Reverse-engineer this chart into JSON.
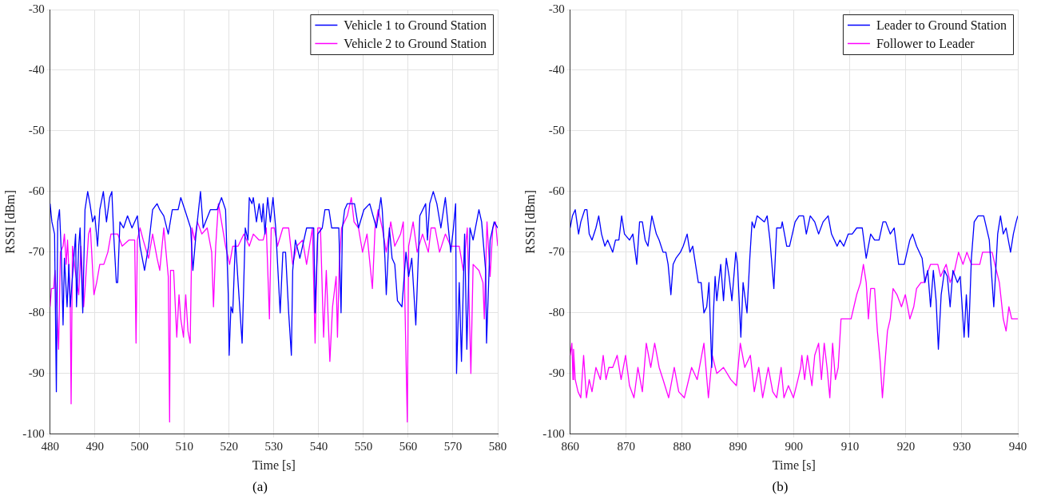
{
  "chart_data": [
    {
      "type": "line",
      "xlabel": "Time [s]",
      "ylabel": "RSSI [dBm]",
      "xlim": [
        480,
        580
      ],
      "xticks": [
        480,
        490,
        500,
        510,
        520,
        530,
        540,
        550,
        560,
        570,
        580
      ],
      "ylim": [
        -100,
        -30
      ],
      "yticks": [
        -100,
        -90,
        -80,
        -70,
        -60,
        -50,
        -40,
        -30
      ],
      "grid": true,
      "legend": "top right",
      "marker": "none",
      "line_style": "solid",
      "annotations": [
        "(a)"
      ],
      "series": [
        {
          "name": "Vehicle 1 to Ground Station",
          "color": "#0000ff",
          "x": [
            480,
            480.4,
            481,
            481.4,
            481.7,
            482.1,
            482.5,
            482.9,
            483.2,
            483.8,
            484.2,
            484.5,
            485.1,
            485.7,
            485.9,
            486.4,
            486.7,
            487.3,
            487.8,
            488.4,
            488.9,
            489.5,
            490,
            490.6,
            491.1,
            491.9,
            492.6,
            493.3,
            493.8,
            494.2,
            494.8,
            495.1,
            495.6,
            496.4,
            497.3,
            498.3,
            499.5,
            500.1,
            501.1,
            502,
            502.9,
            503.9,
            504.5,
            505.4,
            506.4,
            507.3,
            508.6,
            509.2,
            510.1,
            511.4,
            511.9,
            512.6,
            513.6,
            514.2,
            515.8,
            517.3,
            518.3,
            519.2,
            519.8,
            520,
            520.4,
            520.8,
            521.4,
            522,
            522.9,
            523.6,
            524.2,
            524.5,
            525.1,
            525.4,
            526.1,
            526.7,
            527.3,
            527.6,
            528,
            528.6,
            529.2,
            529.8,
            530.4,
            531.4,
            532,
            532.6,
            533.3,
            533.9,
            534.2,
            534.8,
            535.8,
            537.3,
            538.9,
            539.2,
            539.8,
            540.8,
            541.4,
            542.3,
            542.9,
            544.5,
            545,
            545.3,
            545.8,
            546.4,
            548,
            548.9,
            550.1,
            551.4,
            552.9,
            553.9,
            554.2,
            554.8,
            555.1,
            555.8,
            556.4,
            557,
            557.6,
            558.6,
            559.5,
            560.1,
            560.8,
            561.7,
            562.6,
            563.9,
            564.3,
            564.8,
            565.6,
            566.4,
            567.3,
            568.3,
            569.5,
            570.1,
            570.6,
            570.8,
            571.4,
            571.9,
            572.6,
            573.1,
            573.8,
            574.5,
            575.8,
            576.4,
            577.3,
            577.5,
            578.3,
            579.2,
            580
          ],
          "values": [
            -62,
            -65,
            -67,
            -93,
            -65,
            -63,
            -70,
            -82,
            -71,
            -79,
            -72,
            -79,
            -73,
            -67,
            -79,
            -69,
            -66,
            -80,
            -63,
            -60,
            -62,
            -65,
            -64,
            -69,
            -63,
            -60,
            -65,
            -61,
            -60,
            -67,
            -75,
            -75,
            -65,
            -66,
            -64,
            -66,
            -64,
            -69,
            -73,
            -69,
            -63,
            -62,
            -63,
            -64,
            -67,
            -63,
            -63,
            -61,
            -63,
            -66,
            -73,
            -67,
            -60,
            -66,
            -63,
            -63,
            -61,
            -63,
            -77,
            -87,
            -79,
            -80,
            -68,
            -75,
            -85,
            -66,
            -68,
            -61,
            -62,
            -61,
            -65,
            -62,
            -65,
            -62,
            -67,
            -61,
            -65,
            -61,
            -66,
            -80,
            -70,
            -70,
            -80,
            -87,
            -73,
            -68,
            -71,
            -66,
            -66,
            -80,
            -67,
            -66,
            -63,
            -63,
            -66,
            -66,
            -80,
            -66,
            -63,
            -62,
            -62,
            -66,
            -63,
            -62,
            -66,
            -61,
            -63,
            -71,
            -77,
            -66,
            -71,
            -72,
            -78,
            -79,
            -70,
            -74,
            -71,
            -82,
            -64,
            -62,
            -68,
            -62,
            -60,
            -62,
            -66,
            -61,
            -70,
            -66,
            -62,
            -90,
            -75,
            -88,
            -67,
            -86,
            -66,
            -68,
            -63,
            -65,
            -73,
            -85,
            -68,
            -65,
            -66
          ]
        },
        {
          "name": "Vehicle 2 to Ground Station",
          "color": "#ff00ff",
          "x": [
            480,
            480.3,
            480.8,
            481.1,
            481.5,
            481.9,
            482.3,
            482.9,
            483.2,
            483.6,
            483.9,
            484.5,
            484.7,
            485,
            485.6,
            486.4,
            486.9,
            487.5,
            487.9,
            488.6,
            489,
            489.8,
            490.4,
            491.1,
            492,
            492.9,
            493.6,
            495.1,
            496.1,
            497.6,
            498.9,
            499.2,
            499.5,
            500.1,
            500.8,
            502,
            502.9,
            503.9,
            504.5,
            505.4,
            506.4,
            506.7,
            506.9,
            507.6,
            508.3,
            508.8,
            509.2,
            509.8,
            510.3,
            510.8,
            511.3,
            511.7,
            512.3,
            512.9,
            513.9,
            515.1,
            516.1,
            516.5,
            517,
            517.6,
            518.3,
            519.2,
            520.1,
            520.8,
            522,
            523.3,
            524.5,
            525.4,
            526.7,
            527.6,
            528.3,
            529,
            529.4,
            530.1,
            530.8,
            532,
            533.3,
            534.2,
            535.1,
            536.4,
            537.3,
            538.6,
            539.2,
            539.8,
            540.4,
            541.1,
            541.7,
            542.5,
            543.1,
            543.9,
            544.2,
            544.6,
            545.1,
            546.4,
            547.3,
            547.9,
            548.9,
            549.8,
            550.8,
            552,
            552.6,
            553.3,
            554.2,
            555.1,
            556.1,
            557,
            558.3,
            558.9,
            559.8,
            560.1,
            561.1,
            562,
            563.2,
            564.5,
            565.1,
            566,
            567,
            568.3,
            569.5,
            570.4,
            571.4,
            572.3,
            573.2,
            574,
            574.5,
            575.8,
            576.7,
            577,
            577.6,
            578.3,
            578.9,
            579.5,
            580
          ],
          "values": [
            -79,
            -76,
            -76,
            -73,
            -79,
            -86,
            -70,
            -69,
            -67,
            -72,
            -68,
            -78,
            -95,
            -69,
            -73,
            -77,
            -69,
            -79,
            -75,
            -67,
            -66,
            -77,
            -75,
            -72,
            -72,
            -70,
            -67,
            -67,
            -69,
            -68,
            -68,
            -85,
            -68,
            -66,
            -68,
            -71,
            -67,
            -71,
            -73,
            -66,
            -74,
            -98,
            -73,
            -73,
            -84,
            -77,
            -81,
            -84,
            -77,
            -83,
            -85,
            -66,
            -68,
            -65,
            -67,
            -66,
            -70,
            -79,
            -69,
            -62,
            -65,
            -69,
            -72,
            -69,
            -69,
            -67,
            -69,
            -67,
            -68,
            -68,
            -66,
            -81,
            -66,
            -66,
            -69,
            -66,
            -66,
            -72,
            -69,
            -68,
            -72,
            -66,
            -85,
            -66,
            -66,
            -84,
            -73,
            -88,
            -79,
            -74,
            -84,
            -72,
            -66,
            -64,
            -61,
            -65,
            -66,
            -70,
            -67,
            -76,
            -66,
            -63,
            -66,
            -70,
            -65,
            -69,
            -67,
            -65,
            -98,
            -69,
            -65,
            -70,
            -67,
            -70,
            -66,
            -66,
            -70,
            -67,
            -69,
            -69,
            -69,
            -73,
            -66,
            -90,
            -72,
            -73,
            -75,
            -81,
            -65,
            -74,
            -66,
            -65,
            -69
          ]
        }
      ]
    },
    {
      "type": "line",
      "xlabel": "Time [s]",
      "ylabel": "RSSI [dBm]",
      "xlim": [
        860,
        940
      ],
      "xticks": [
        860,
        870,
        880,
        890,
        900,
        910,
        920,
        930,
        940
      ],
      "ylim": [
        -100,
        -30
      ],
      "yticks": [
        -100,
        -90,
        -80,
        -70,
        -60,
        -50,
        -40,
        -30
      ],
      "grid": true,
      "legend": "top right",
      "marker": "none",
      "line_style": "solid",
      "annotations": [
        "(b)"
      ],
      "series": [
        {
          "name": "Leader to Ground Station",
          "color": "#0000ff",
          "x": [
            860,
            860.4,
            860.9,
            861.2,
            861.5,
            861.9,
            862.6,
            863,
            863.4,
            863.9,
            864.6,
            865.1,
            865.6,
            866.2,
            866.7,
            867.6,
            868.1,
            868.7,
            869.2,
            869.7,
            870.6,
            871.2,
            871.9,
            872.4,
            872.9,
            873.4,
            873.9,
            874.6,
            875.4,
            875.9,
            876.6,
            877.1,
            877.5,
            878,
            878.4,
            878.9,
            879.7,
            880.2,
            880.9,
            881.4,
            881.9,
            882.4,
            882.9,
            883.4,
            883.9,
            884.4,
            884.8,
            885.3,
            885.6,
            885.9,
            886.2,
            886.9,
            887.4,
            887.9,
            888.4,
            888.9,
            889.6,
            889.9,
            890.5,
            890.9,
            891.6,
            892.1,
            892.5,
            892.9,
            893.4,
            894.7,
            895.2,
            895.7,
            896.4,
            896.9,
            897.7,
            897.9,
            898.7,
            899.2,
            899.7,
            900.2,
            900.9,
            901.7,
            902.2,
            902.9,
            903.7,
            904.4,
            905.2,
            906.1,
            906.7,
            907.7,
            908.2,
            908.9,
            909.7,
            910.4,
            911.2,
            912.2,
            912.9,
            913.7,
            914.4,
            915.2,
            915.9,
            916.4,
            917.2,
            917.9,
            918.7,
            919.7,
            920.7,
            921.2,
            921.9,
            922.9,
            923.4,
            923.9,
            924.4,
            924.9,
            925.4,
            925.8,
            926.3,
            926.9,
            927.4,
            927.9,
            928.4,
            929.2,
            929.7,
            930.4,
            930.8,
            931.2,
            931.7,
            932.2,
            932.9,
            933.9,
            934.9,
            935.7,
            936.4,
            936.9,
            937.4,
            937.9,
            938.7,
            939.2,
            939.7,
            940
          ],
          "values": [
            -66,
            -64,
            -63,
            -65,
            -67,
            -65,
            -63,
            -63,
            -67,
            -68,
            -66,
            -64,
            -67,
            -69,
            -68,
            -70,
            -68,
            -68,
            -64,
            -67,
            -68,
            -67,
            -72,
            -65,
            -65,
            -68,
            -69,
            -64,
            -67,
            -68,
            -70,
            -70,
            -72,
            -77,
            -72,
            -71,
            -70,
            -69,
            -67,
            -70,
            -69,
            -72,
            -75,
            -75,
            -80,
            -79,
            -75,
            -89,
            -80,
            -74,
            -78,
            -72,
            -78,
            -71,
            -74,
            -78,
            -70,
            -72,
            -84,
            -75,
            -80,
            -71,
            -65,
            -66,
            -64,
            -65,
            -64,
            -68,
            -76,
            -66,
            -66,
            -65,
            -69,
            -69,
            -67,
            -65,
            -64,
            -64,
            -67,
            -64,
            -65,
            -67,
            -65,
            -64,
            -67,
            -69,
            -68,
            -69,
            -67,
            -67,
            -66,
            -66,
            -71,
            -67,
            -68,
            -68,
            -65,
            -65,
            -67,
            -66,
            -72,
            -72,
            -68,
            -67,
            -69,
            -71,
            -75,
            -73,
            -79,
            -73,
            -78,
            -86,
            -77,
            -73,
            -74,
            -79,
            -73,
            -75,
            -74,
            -84,
            -77,
            -84,
            -71,
            -65,
            -64,
            -64,
            -68,
            -79,
            -67,
            -64,
            -67,
            -66,
            -70,
            -67,
            -65,
            -64
          ]
        },
        {
          "name": "Follower to Leader",
          "color": "#ff00ff",
          "x": [
            860,
            860.3,
            860.5,
            860.6,
            860.9,
            861.4,
            861.9,
            862.4,
            862.9,
            863.4,
            863.9,
            864.6,
            865.4,
            865.9,
            866.4,
            866.9,
            867.6,
            868.4,
            869.1,
            869.9,
            870.6,
            871.4,
            872.1,
            872.9,
            873.6,
            874.4,
            875.1,
            875.9,
            876.6,
            877.6,
            878.6,
            879.4,
            880.4,
            881.7,
            882.7,
            883.9,
            884.7,
            885.4,
            886.2,
            887.4,
            888.7,
            889.7,
            890.4,
            891.2,
            892.2,
            892.9,
            893.7,
            894.4,
            895.4,
            896.2,
            896.9,
            897.7,
            898.2,
            899,
            899.9,
            900.7,
            901.2,
            901.4,
            901.9,
            902.4,
            903.2,
            903.7,
            904.4,
            904.9,
            905.4,
            905.9,
            906.4,
            906.9,
            907.4,
            907.9,
            908.4,
            909.2,
            910.2,
            910.7,
            911.2,
            911.9,
            912.4,
            912.9,
            913.3,
            913.7,
            914.4,
            914.9,
            915.4,
            915.8,
            916.2,
            916.7,
            917.2,
            917.7,
            918.4,
            919.2,
            919.9,
            920.7,
            921.4,
            921.9,
            922.7,
            923.2,
            924.4,
            925.7,
            926.2,
            927.2,
            927.9,
            928.7,
            929.4,
            930.2,
            930.9,
            931.7,
            933.2,
            933.7,
            935.4,
            935.9,
            936.7,
            937.4,
            937.9,
            938.4,
            938.9,
            940
          ],
          "values": [
            -87,
            -85,
            -91,
            -86,
            -91,
            -93,
            -94,
            -87,
            -94,
            -91,
            -93,
            -89,
            -91,
            -87,
            -91,
            -89,
            -89,
            -87,
            -91,
            -87,
            -92,
            -94,
            -89,
            -93,
            -85,
            -89,
            -85,
            -89,
            -91,
            -94,
            -89,
            -93,
            -94,
            -89,
            -91,
            -85,
            -94,
            -87,
            -90,
            -89,
            -91,
            -92,
            -85,
            -89,
            -87,
            -93,
            -89,
            -94,
            -89,
            -93,
            -94,
            -89,
            -94,
            -92,
            -94,
            -91,
            -89,
            -87,
            -91,
            -87,
            -92,
            -87,
            -85,
            -91,
            -85,
            -89,
            -94,
            -85,
            -91,
            -89,
            -81,
            -81,
            -81,
            -79,
            -77,
            -75,
            -72,
            -75,
            -81,
            -76,
            -76,
            -83,
            -88,
            -94,
            -89,
            -83,
            -81,
            -76,
            -77,
            -79,
            -77,
            -81,
            -79,
            -76,
            -75,
            -75,
            -72,
            -72,
            -74,
            -72,
            -75,
            -73,
            -70,
            -72,
            -70,
            -72,
            -72,
            -70,
            -70,
            -72,
            -75,
            -81,
            -83,
            -79,
            -81,
            -81
          ]
        }
      ]
    }
  ]
}
